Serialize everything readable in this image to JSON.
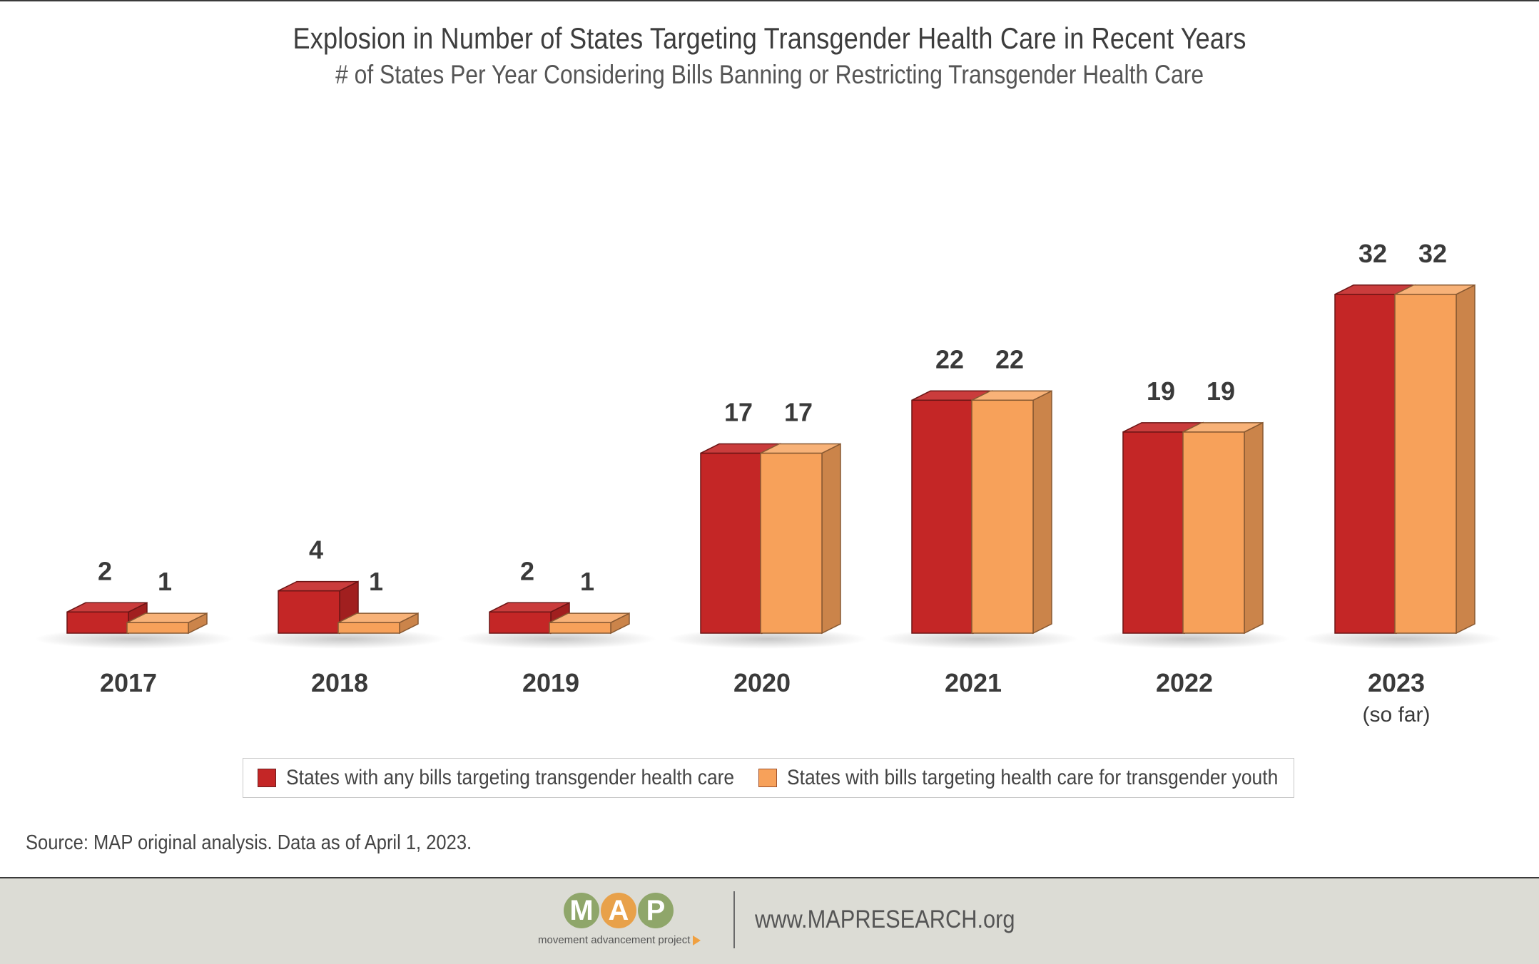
{
  "title": "Explosion in Number of States Targeting Transgender Health Care in Recent Years",
  "subtitle": "# of States Per Year Considering Bills Banning or Restricting Transgender Health Care",
  "chart_data": {
    "type": "bar",
    "categories": [
      "2017",
      "2018",
      "2019",
      "2020",
      "2021",
      "2022",
      "2023"
    ],
    "category_notes": [
      "",
      "",
      "",
      "",
      "",
      "",
      "(so far)"
    ],
    "series": [
      {
        "name": "States with any bills targeting transgender health care",
        "values": [
          2,
          4,
          2,
          17,
          22,
          19,
          32
        ],
        "color": "#c42626"
      },
      {
        "name": "States with bills targeting health care for transgender youth",
        "values": [
          1,
          1,
          1,
          17,
          22,
          19,
          32
        ],
        "color": "#f7a15a"
      }
    ],
    "ylim": [
      0,
      32
    ],
    "grid": false,
    "legend_position": "bottom",
    "style": "3d"
  },
  "source": "Source: MAP original analysis. Data as of April 1, 2023.",
  "footer": {
    "logo_letters": [
      "M",
      "A",
      "P"
    ],
    "logo_colors": [
      "#8fa66a",
      "#e8a14a",
      "#8fa66a"
    ],
    "logo_tagline": "movement advancement project",
    "url": "www.MAPRESEARCH.org"
  }
}
